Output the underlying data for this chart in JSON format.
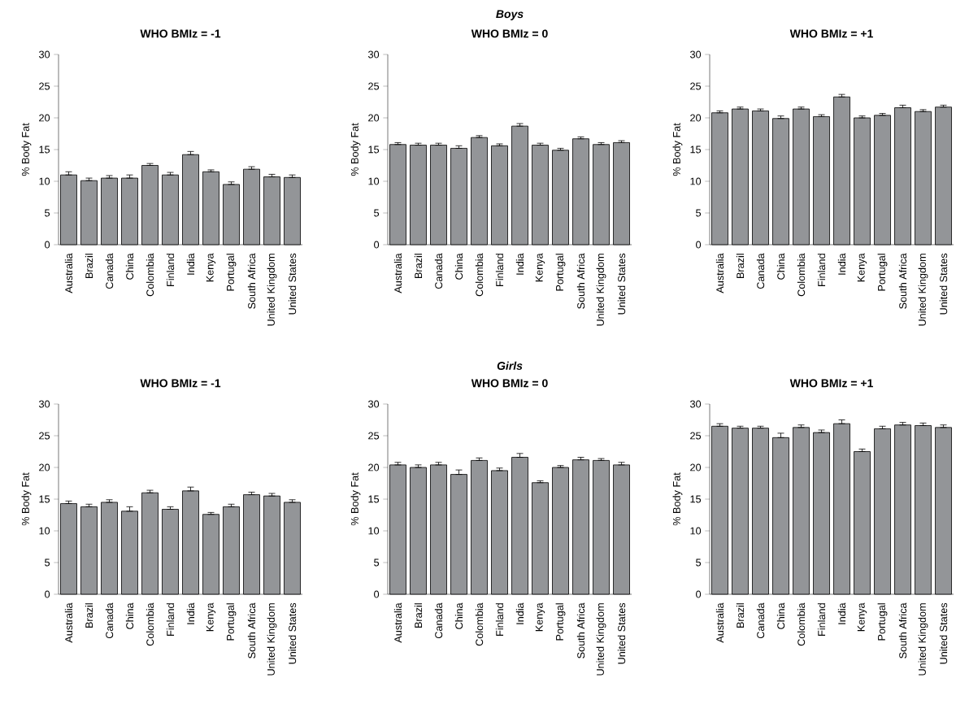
{
  "chart_data": [
    {
      "type": "bar",
      "title": "WHO BMIz = -1",
      "ylabel": "% Body Fat",
      "color": "#939598",
      "ylim": [
        0,
        30
      ],
      "yticks": [
        0,
        5,
        10,
        15,
        20,
        25,
        30
      ],
      "categories": [
        "Australia",
        "Brazil",
        "Canada",
        "China",
        "Colombia",
        "Finland",
        "India",
        "Kenya",
        "Portugal",
        "South Africa",
        "United Kingdom",
        "United States"
      ],
      "values": [
        11.0,
        10.1,
        10.5,
        10.5,
        12.5,
        11.0,
        14.2,
        11.5,
        9.5,
        11.9,
        10.7,
        10.6
      ],
      "errors": [
        [
          11.0,
          11.5
        ],
        [
          10.1,
          10.5
        ],
        [
          10.5,
          10.9
        ],
        [
          10.5,
          11.0
        ],
        [
          12.5,
          12.8
        ],
        [
          11.0,
          11.4
        ],
        [
          14.2,
          14.7
        ],
        [
          11.5,
          11.8
        ],
        [
          9.5,
          9.9
        ],
        [
          11.9,
          12.3
        ],
        [
          10.7,
          11.1
        ],
        [
          10.6,
          11.0
        ]
      ]
    },
    {
      "type": "bar",
      "subtitle": "Boys",
      "title": "WHO BMIz = 0",
      "ylabel": "% Body Fat",
      "color": "#939598",
      "ylim": [
        0,
        30
      ],
      "yticks": [
        0,
        5,
        10,
        15,
        20,
        25,
        30
      ],
      "categories": [
        "Australia",
        "Brazil",
        "Canada",
        "China",
        "Colombia",
        "Finland",
        "India",
        "Kenya",
        "Portugal",
        "South Africa",
        "United Kingdom",
        "United States"
      ],
      "values": [
        15.8,
        15.7,
        15.7,
        15.2,
        16.9,
        15.6,
        18.7,
        15.7,
        14.9,
        16.7,
        15.8,
        16.1
      ],
      "errors": [
        [
          15.8,
          16.1
        ],
        [
          15.7,
          16.0
        ],
        [
          15.7,
          16.0
        ],
        [
          15.2,
          15.6
        ],
        [
          16.9,
          17.2
        ],
        [
          15.6,
          15.9
        ],
        [
          18.7,
          19.1
        ],
        [
          15.7,
          16.0
        ],
        [
          14.9,
          15.2
        ],
        [
          16.7,
          17.0
        ],
        [
          15.8,
          16.1
        ],
        [
          16.1,
          16.4
        ]
      ]
    },
    {
      "type": "bar",
      "title": "WHO BMIz = +1",
      "ylabel": "% Body Fat",
      "color": "#939598",
      "ylim": [
        0,
        30
      ],
      "yticks": [
        0,
        5,
        10,
        15,
        20,
        25,
        30
      ],
      "categories": [
        "Australia",
        "Brazil",
        "Canada",
        "China",
        "Colombia",
        "Finland",
        "India",
        "Kenya",
        "Portugal",
        "South Africa",
        "United Kingdom",
        "United States"
      ],
      "values": [
        20.8,
        21.4,
        21.1,
        19.9,
        21.4,
        20.2,
        23.3,
        20.0,
        20.4,
        21.6,
        21.0,
        21.7
      ],
      "errors": [
        [
          20.8,
          21.1
        ],
        [
          21.4,
          21.7
        ],
        [
          21.1,
          21.4
        ],
        [
          19.9,
          20.3
        ],
        [
          21.4,
          21.7
        ],
        [
          20.2,
          20.5
        ],
        [
          23.3,
          23.7
        ],
        [
          20.0,
          20.3
        ],
        [
          20.4,
          20.7
        ],
        [
          21.6,
          22.0
        ],
        [
          21.0,
          21.3
        ],
        [
          21.7,
          22.0
        ]
      ]
    },
    {
      "type": "bar",
      "title": "WHO BMIz = -1",
      "ylabel": "% Body Fat",
      "color": "#939598",
      "ylim": [
        0,
        30
      ],
      "yticks": [
        0,
        5,
        10,
        15,
        20,
        25,
        30
      ],
      "categories": [
        "Australia",
        "Brazil",
        "Canada",
        "China",
        "Colombia",
        "Finland",
        "India",
        "Kenya",
        "Portugal",
        "South Africa",
        "United Kingdom",
        "United States"
      ],
      "values": [
        14.3,
        13.8,
        14.5,
        13.1,
        16.0,
        13.4,
        16.3,
        12.6,
        13.8,
        15.7,
        15.5,
        14.5
      ],
      "errors": [
        [
          14.3,
          14.7
        ],
        [
          13.8,
          14.2
        ],
        [
          14.5,
          14.9
        ],
        [
          13.1,
          13.8
        ],
        [
          16.0,
          16.4
        ],
        [
          13.4,
          13.8
        ],
        [
          16.3,
          16.9
        ],
        [
          12.6,
          12.9
        ],
        [
          13.8,
          14.2
        ],
        [
          15.7,
          16.1
        ],
        [
          15.5,
          15.9
        ],
        [
          14.5,
          14.9
        ]
      ]
    },
    {
      "type": "bar",
      "subtitle": "Girls",
      "title": "WHO BMIz = 0",
      "ylabel": "% Body Fat",
      "color": "#939598",
      "ylim": [
        0,
        30
      ],
      "yticks": [
        0,
        5,
        10,
        15,
        20,
        25,
        30
      ],
      "categories": [
        "Australia",
        "Brazil",
        "Canada",
        "China",
        "Colombia",
        "Finland",
        "India",
        "Kenya",
        "Portugal",
        "South Africa",
        "United Kingdom",
        "United States"
      ],
      "values": [
        20.4,
        20.0,
        20.4,
        18.9,
        21.1,
        19.5,
        21.6,
        17.6,
        20.0,
        21.2,
        21.1,
        20.4
      ],
      "errors": [
        [
          20.4,
          20.8
        ],
        [
          20.0,
          20.4
        ],
        [
          20.4,
          20.8
        ],
        [
          18.9,
          19.6
        ],
        [
          21.1,
          21.5
        ],
        [
          19.5,
          19.9
        ],
        [
          21.6,
          22.2
        ],
        [
          17.6,
          17.9
        ],
        [
          20.0,
          20.3
        ],
        [
          21.2,
          21.6
        ],
        [
          21.1,
          21.4
        ],
        [
          20.4,
          20.8
        ]
      ]
    },
    {
      "type": "bar",
      "title": "WHO BMIz = +1",
      "ylabel": "% Body Fat",
      "color": "#939598",
      "ylim": [
        0,
        30
      ],
      "yticks": [
        0,
        5,
        10,
        15,
        20,
        25,
        30
      ],
      "categories": [
        "Australia",
        "Brazil",
        "Canada",
        "China",
        "Colombia",
        "Finland",
        "India",
        "Kenya",
        "Portugal",
        "South Africa",
        "United Kingdom",
        "United States"
      ],
      "values": [
        26.5,
        26.2,
        26.2,
        24.7,
        26.3,
        25.5,
        26.9,
        22.5,
        26.1,
        26.7,
        26.6,
        26.3
      ],
      "errors": [
        [
          26.5,
          26.9
        ],
        [
          26.2,
          26.5
        ],
        [
          26.2,
          26.5
        ],
        [
          24.7,
          25.4
        ],
        [
          26.3,
          26.7
        ],
        [
          25.5,
          25.9
        ],
        [
          26.9,
          27.5
        ],
        [
          22.5,
          22.9
        ],
        [
          26.1,
          26.5
        ],
        [
          26.7,
          27.1
        ],
        [
          26.6,
          27.0
        ],
        [
          26.3,
          26.7
        ]
      ]
    }
  ]
}
